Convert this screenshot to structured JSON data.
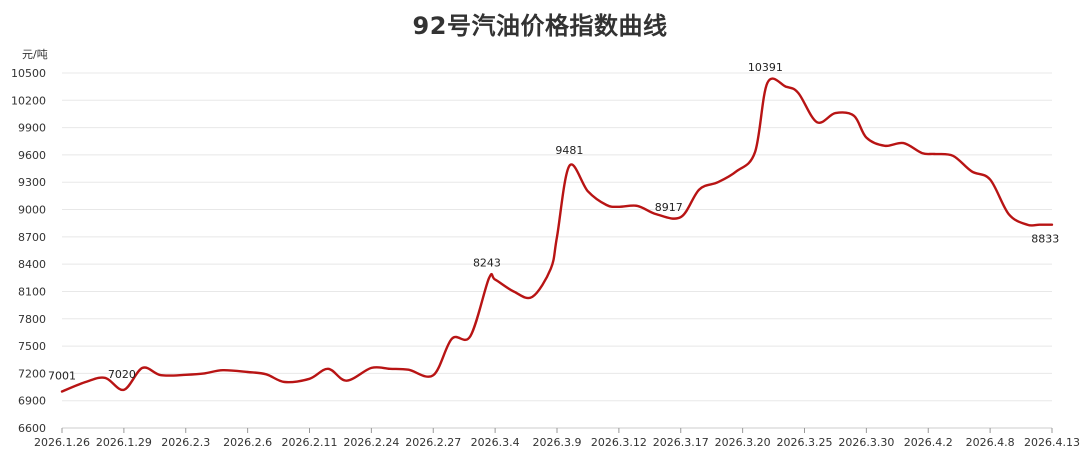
{
  "chart_data": {
    "type": "line",
    "title": "92号汽油价格指数曲线",
    "ylabel": "元/吨",
    "ylim": [
      6600,
      10500
    ],
    "yticks": [
      6600,
      6900,
      7200,
      7500,
      7800,
      8100,
      8400,
      8700,
      9000,
      9300,
      9600,
      9900,
      10200,
      10500
    ],
    "xticks": [
      "2026.1.26",
      "2026.1.29",
      "2026.2.3",
      "2026.2.6",
      "2026.2.11",
      "2026.2.24",
      "2026.2.27",
      "2026.3.4",
      "2026.3.9",
      "2026.3.12",
      "2026.3.17",
      "2026.3.20",
      "2026.3.25",
      "2026.3.30",
      "2026.4.2",
      "2026.4.8",
      "2026.4.13"
    ],
    "grid": true,
    "color": "#b81414",
    "series": [
      {
        "name": "",
        "x": [
          0,
          0.4,
          0.7,
          1.0,
          1.3,
          1.6,
          2.0,
          2.3,
          2.6,
          3.0,
          3.3,
          3.6,
          4.0,
          4.3,
          4.6,
          5.0,
          5.3,
          5.6,
          6.0,
          6.3,
          6.6,
          6.9,
          7.0,
          7.3,
          7.6,
          7.9,
          8.0,
          8.2,
          8.5,
          8.8,
          9.0,
          9.3,
          9.6,
          10.0,
          10.3,
          10.6,
          10.9,
          11.2,
          11.4,
          11.7,
          11.9,
          12.2,
          12.5,
          12.8,
          13.0,
          13.3,
          13.6,
          13.9,
          14.1,
          14.4,
          14.7,
          15.0,
          15.3,
          15.6,
          15.8,
          16.0
        ],
        "values": [
          7001,
          7110,
          7150,
          7020,
          7260,
          7180,
          7185,
          7200,
          7235,
          7215,
          7190,
          7105,
          7140,
          7250,
          7120,
          7260,
          7250,
          7240,
          7180,
          7580,
          7610,
          8243,
          8230,
          8100,
          8040,
          8350,
          8700,
          9481,
          9200,
          9050,
          9030,
          9040,
          8950,
          8917,
          9220,
          9300,
          9420,
          9630,
          10391,
          10350,
          10280,
          9960,
          10060,
          10030,
          9790,
          9700,
          9730,
          9620,
          9610,
          9590,
          9420,
          9330,
          8950,
          8833,
          8833,
          8833
        ]
      }
    ],
    "data_labels": [
      {
        "x": 0,
        "value": 7001,
        "text": "7001"
      },
      {
        "x": 1.0,
        "value": 7020,
        "text": "7020"
      },
      {
        "x": 6.9,
        "value": 8243,
        "text": "8243"
      },
      {
        "x": 8.2,
        "value": 9481,
        "text": "9481"
      },
      {
        "x": 10.0,
        "value": 8917,
        "text": "8917"
      },
      {
        "x": 11.4,
        "value": 10391,
        "text": "10391"
      },
      {
        "x": 15.6,
        "value": 8833,
        "text": "8833"
      }
    ]
  }
}
